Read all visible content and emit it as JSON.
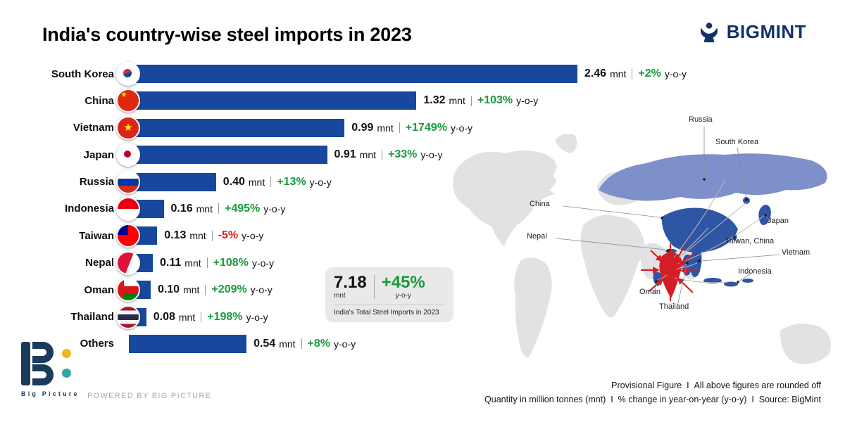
{
  "header": {
    "title": "India's country-wise steel imports in 2023",
    "brand": "BIGMINT"
  },
  "chart_data": {
    "type": "bar",
    "orientation": "horizontal",
    "title": "India's country-wise steel imports in 2023",
    "unit": "mnt",
    "yoy_suffix": "y-o-y",
    "categories": [
      "South Korea",
      "China",
      "Vietnam",
      "Japan",
      "Russia",
      "Indonesia",
      "Taiwan",
      "Nepal",
      "Oman",
      "Thailand",
      "Others"
    ],
    "values": [
      2.46,
      1.32,
      0.99,
      0.91,
      0.4,
      0.16,
      0.13,
      0.11,
      0.1,
      0.08,
      0.54
    ],
    "value_labels": [
      "2.46",
      "1.32",
      "0.99",
      "0.91",
      "0.40",
      "0.16",
      "0.13",
      "0.11",
      "0.10",
      "0.08",
      "0.54"
    ],
    "yoy_changes": [
      "+2%",
      "+103%",
      "+1749%",
      "+33%",
      "+13%",
      "+495%",
      "-5%",
      "+108%",
      "+209%",
      "+198%",
      "+8%"
    ],
    "xlim": [
      0,
      2.56
    ],
    "grid": false,
    "legend": false,
    "colors": {
      "bar": "#17489e",
      "positive": "#179b3b",
      "negative": "#e01d1d"
    }
  },
  "callout": {
    "total_value": "7.18",
    "total_unit": "mnt",
    "yoy_value": "+45%",
    "yoy_label": "y-o-y",
    "caption": "India's Total Steel Imports in 2023"
  },
  "map": {
    "labels": {
      "russia": "Russia",
      "south_korea": "South Korea",
      "china": "China",
      "japan": "Japan",
      "nepal": "Nepal",
      "taiwan": "Taiwan, China",
      "vietnam": "Vietnam",
      "indonesia": "Indonesia",
      "oman": "Oman",
      "thailand": "Thailand"
    },
    "colors": {
      "base": "#e2e2e2",
      "russia": "#7e90ca",
      "highlight": "#2f55a5",
      "india": "#d41e26"
    }
  },
  "footer": {
    "logo_text": "Big Picture",
    "powered_by": "POWERED BY BIG PICTURE",
    "note_line1": "Provisional Figure  I  All above figures are rounded off",
    "note_line2": "Quantity in million tonnes (mnt)  I  % change in year-on-year (y-o-y)  I  Source: BigMint"
  }
}
